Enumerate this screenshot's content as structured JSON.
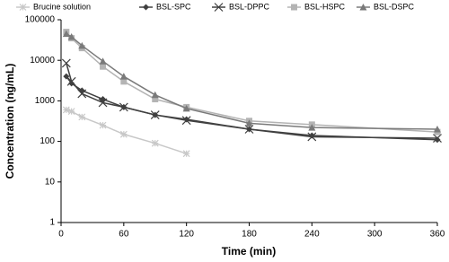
{
  "chart_data": {
    "type": "line",
    "x_label": "Time (min)",
    "y_label": "Concentration (ng/mL)",
    "x": [
      5,
      10,
      20,
      40,
      60,
      90,
      120,
      180,
      240,
      360
    ],
    "xlim": [
      0,
      360
    ],
    "xticks": [
      0,
      60,
      120,
      180,
      240,
      300,
      360
    ],
    "ylim": [
      1,
      100000
    ],
    "yticks": [
      1,
      10,
      100,
      1000,
      10000,
      100000
    ],
    "y_log": true,
    "legend": "top",
    "series": [
      {
        "name": "Brucine solution",
        "color": "#c8c8c8",
        "marker": "star",
        "values": [
          600,
          550,
          400,
          250,
          150,
          90,
          50,
          null,
          null,
          null
        ]
      },
      {
        "name": "BSL-SPC",
        "color": "#404040",
        "marker": "diamond",
        "values": [
          4000,
          2700,
          1800,
          1100,
          700,
          450,
          350,
          200,
          140,
          110
        ]
      },
      {
        "name": "BSL-DPPC",
        "color": "#404040",
        "marker": "x",
        "values": [
          8500,
          3000,
          1500,
          900,
          700,
          450,
          330,
          200,
          130,
          120
        ]
      },
      {
        "name": "BSL-HSPC",
        "color": "#b4b4b4",
        "marker": "square",
        "values": [
          50000,
          35000,
          20000,
          7000,
          3000,
          1100,
          700,
          320,
          260,
          170
        ]
      },
      {
        "name": "BSL-DSPC",
        "color": "#7a7a7a",
        "marker": "triangle",
        "values": [
          45000,
          38000,
          23000,
          9500,
          4000,
          1400,
          650,
          280,
          220,
          200
        ]
      }
    ]
  }
}
